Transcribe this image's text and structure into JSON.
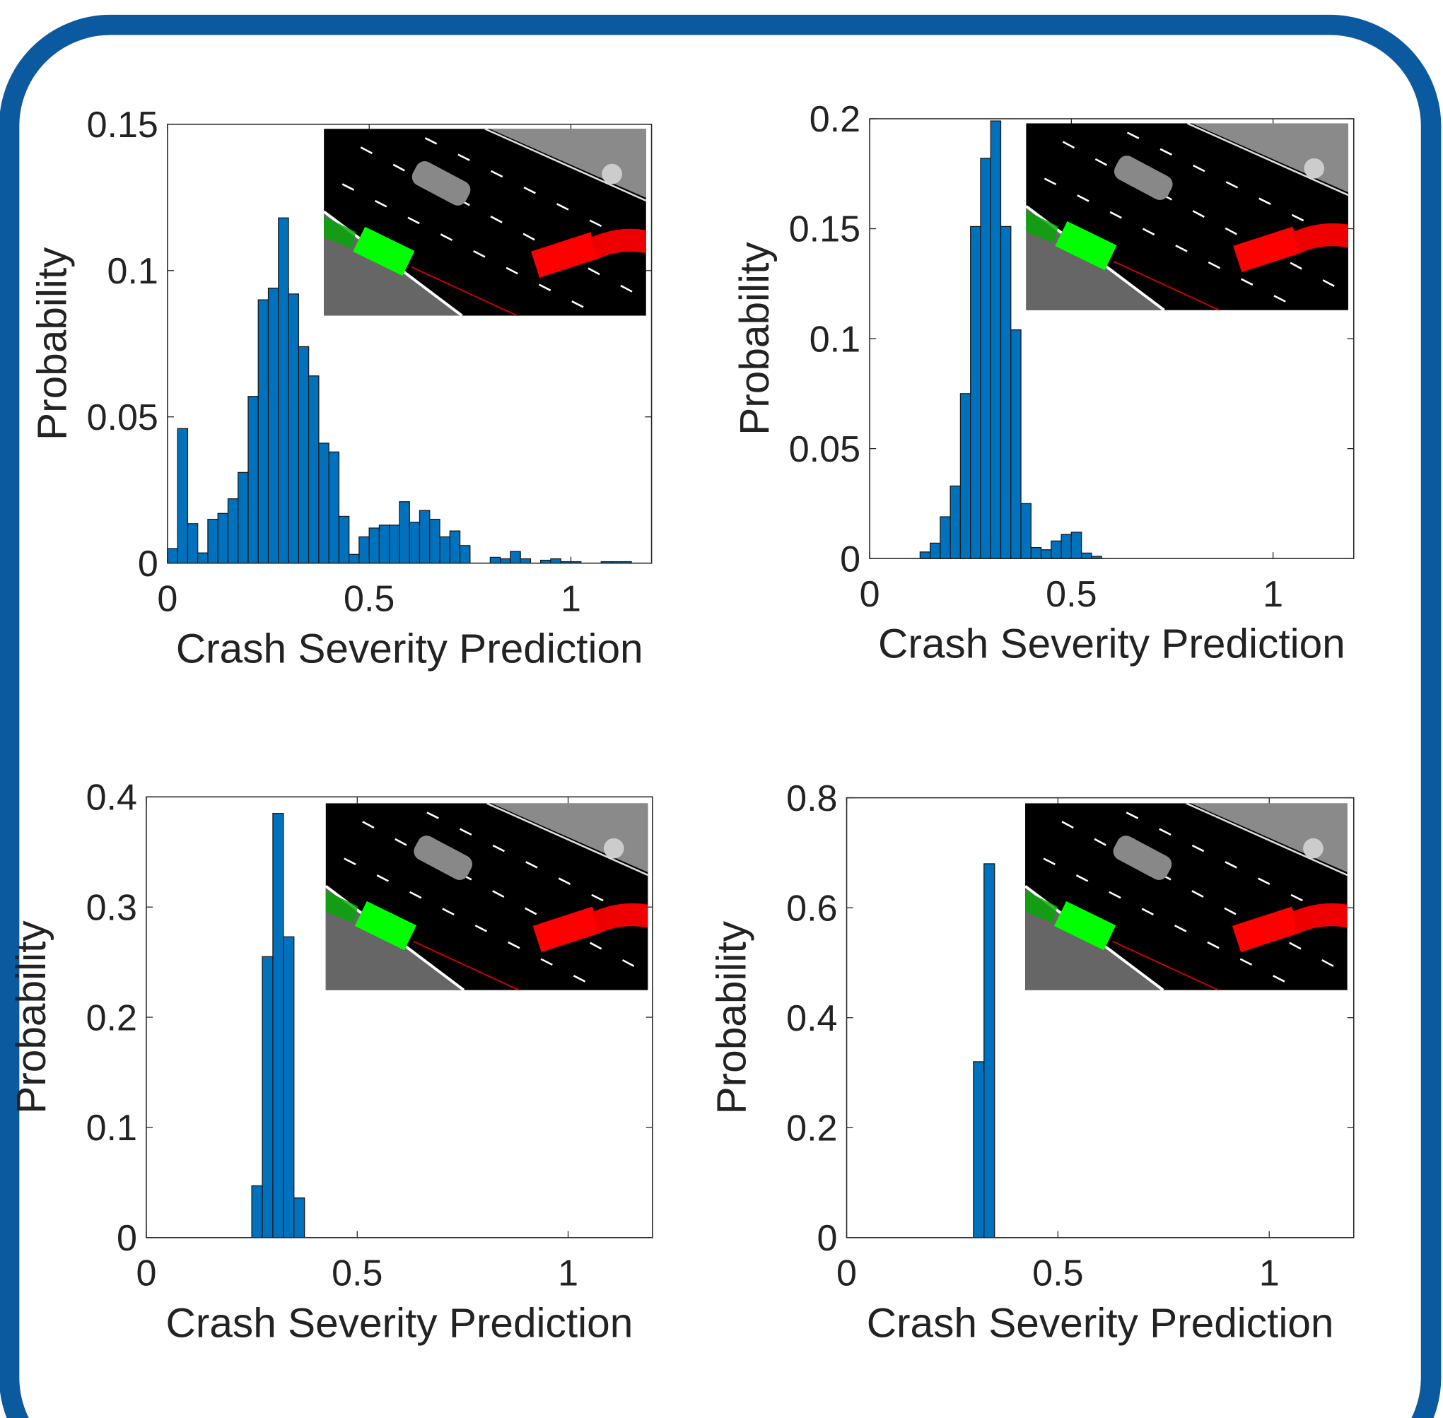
{
  "chart_data": [
    {
      "type": "histogram",
      "color": "#0072bd",
      "xlabel": "Crash Severity Prediction",
      "ylabel": "Probability",
      "bins": [
        0,
        0.025,
        0.05,
        0.075,
        0.1,
        0.125,
        0.15,
        0.175,
        0.2,
        0.225,
        0.25,
        0.275,
        0.3,
        0.325,
        0.35,
        0.375,
        0.4,
        0.425,
        0.45,
        0.475,
        0.5,
        0.525,
        0.55,
        0.575,
        0.6,
        0.625,
        0.65,
        0.675,
        0.7,
        0.725,
        0.75,
        0.775,
        0.8,
        0.825,
        0.85,
        0.875,
        0.9,
        0.925,
        0.95,
        0.975,
        1,
        1.025,
        1.05,
        1.075,
        1.1,
        1.125,
        1.15,
        1.175,
        1.2
      ],
      "values": [
        0.005,
        0.046,
        0.0135,
        0.0035,
        0.015,
        0.017,
        0.022,
        0.031,
        0.057,
        0.09,
        0.094,
        0.118,
        0.092,
        0.074,
        0.064,
        0.041,
        0.038,
        0.016,
        0.003,
        0.009,
        0.012,
        0.013,
        0.013,
        0.021,
        0.014,
        0.018,
        0.015,
        0.009,
        0.011,
        0.006,
        0,
        0,
        0.002,
        0.0015,
        0.004,
        0.0015,
        0,
        0.001,
        0.0015,
        0.0005,
        0.0005,
        0,
        0,
        0.0005,
        0.0005,
        0.0005,
        0,
        0
      ],
      "xlim": [
        0,
        1.2
      ],
      "ylim": [
        0,
        0.15
      ],
      "xticks": [
        0,
        0.5,
        1
      ],
      "yticks": [
        0,
        0.05,
        0.1,
        0.15
      ]
    },
    {
      "type": "histogram",
      "color": "#0072bd",
      "xlabel": "Crash Severity Prediction",
      "ylabel": "Probability",
      "bins": [
        0.125,
        0.15,
        0.175,
        0.2,
        0.225,
        0.25,
        0.275,
        0.3,
        0.325,
        0.35,
        0.375,
        0.4,
        0.425,
        0.45,
        0.475,
        0.5,
        0.525,
        0.55,
        0.575
      ],
      "values": [
        0.003,
        0.007,
        0.019,
        0.033,
        0.075,
        0.151,
        0.182,
        0.199,
        0.151,
        0.104,
        0.025,
        0.005,
        0.004,
        0.008,
        0.011,
        0.012,
        0.0025,
        0.001
      ],
      "xlim": [
        0,
        1.2
      ],
      "ylim": [
        0,
        0.2
      ],
      "xticks": [
        0,
        0.5,
        1
      ],
      "yticks": [
        0,
        0.05,
        0.1,
        0.15,
        0.2
      ]
    },
    {
      "type": "histogram",
      "color": "#0072bd",
      "xlabel": "Crash Severity Prediction",
      "ylabel": "Probability",
      "bins": [
        0.25,
        0.275,
        0.3,
        0.325,
        0.35,
        0.375
      ],
      "values": [
        0.047,
        0.255,
        0.385,
        0.273,
        0.036
      ],
      "xlim": [
        0,
        1.2
      ],
      "ylim": [
        0,
        0.4
      ],
      "xticks": [
        0,
        0.5,
        1
      ],
      "yticks": [
        0,
        0.1,
        0.2,
        0.3,
        0.4
      ]
    },
    {
      "type": "histogram",
      "color": "#0072bd",
      "xlabel": "Crash Severity Prediction",
      "ylabel": "Probability",
      "bins": [
        0.3,
        0.325,
        0.35
      ],
      "values": [
        0.32,
        0.68
      ],
      "xlim": [
        0,
        1.2
      ],
      "ylim": [
        0,
        0.8
      ],
      "xticks": [
        0,
        0.5,
        1
      ],
      "yticks": [
        0,
        0.2,
        0.4,
        0.6,
        0.8
      ]
    }
  ]
}
